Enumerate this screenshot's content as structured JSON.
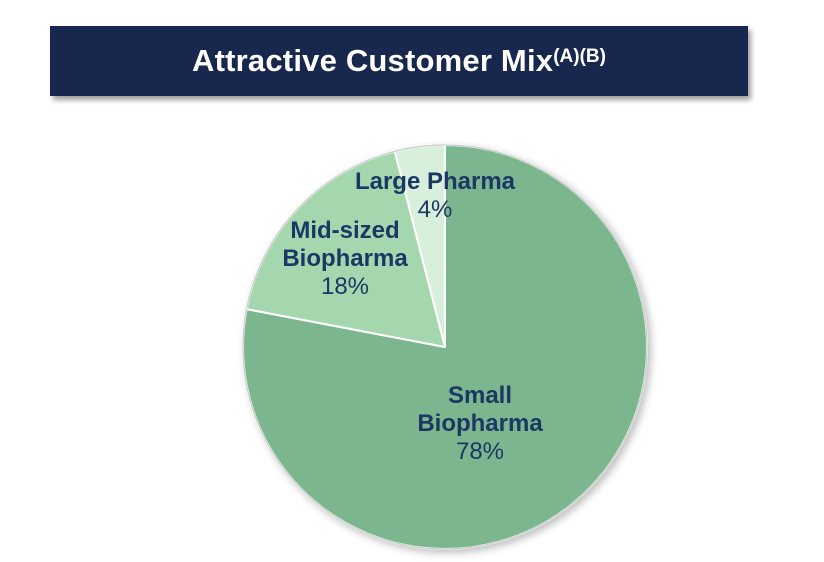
{
  "page": {
    "background": "#ffffff"
  },
  "header": {
    "title": "Attractive Customer Mix",
    "superscript": "(A)(B)",
    "bar_color": "#18274d",
    "text_color": "#ffffff"
  },
  "chart_data": {
    "type": "pie",
    "title": "Attractive Customer Mix(A)(B)",
    "direction": "clockwise",
    "start_angle_deg": 0,
    "slice_border_color": "#ffffff",
    "rim_color": "#c6ccc6",
    "label_color": "#1b3764",
    "legend": "none (labels drawn on chart)",
    "segments": [
      {
        "label": "Small Biopharma",
        "label_lines": [
          "Small",
          "Biopharma"
        ],
        "value": 78,
        "pct_label": "78%",
        "color": "#7cb68e"
      },
      {
        "label": "Mid-sized Biopharma",
        "label_lines": [
          "Mid-sized",
          "Biopharma"
        ],
        "value": 18,
        "pct_label": "18%",
        "color": "#a5d7af"
      },
      {
        "label": "Large Pharma",
        "label_lines": [
          "Large Pharma"
        ],
        "value": 4,
        "pct_label": "4%",
        "color": "#d8efdb"
      }
    ]
  }
}
